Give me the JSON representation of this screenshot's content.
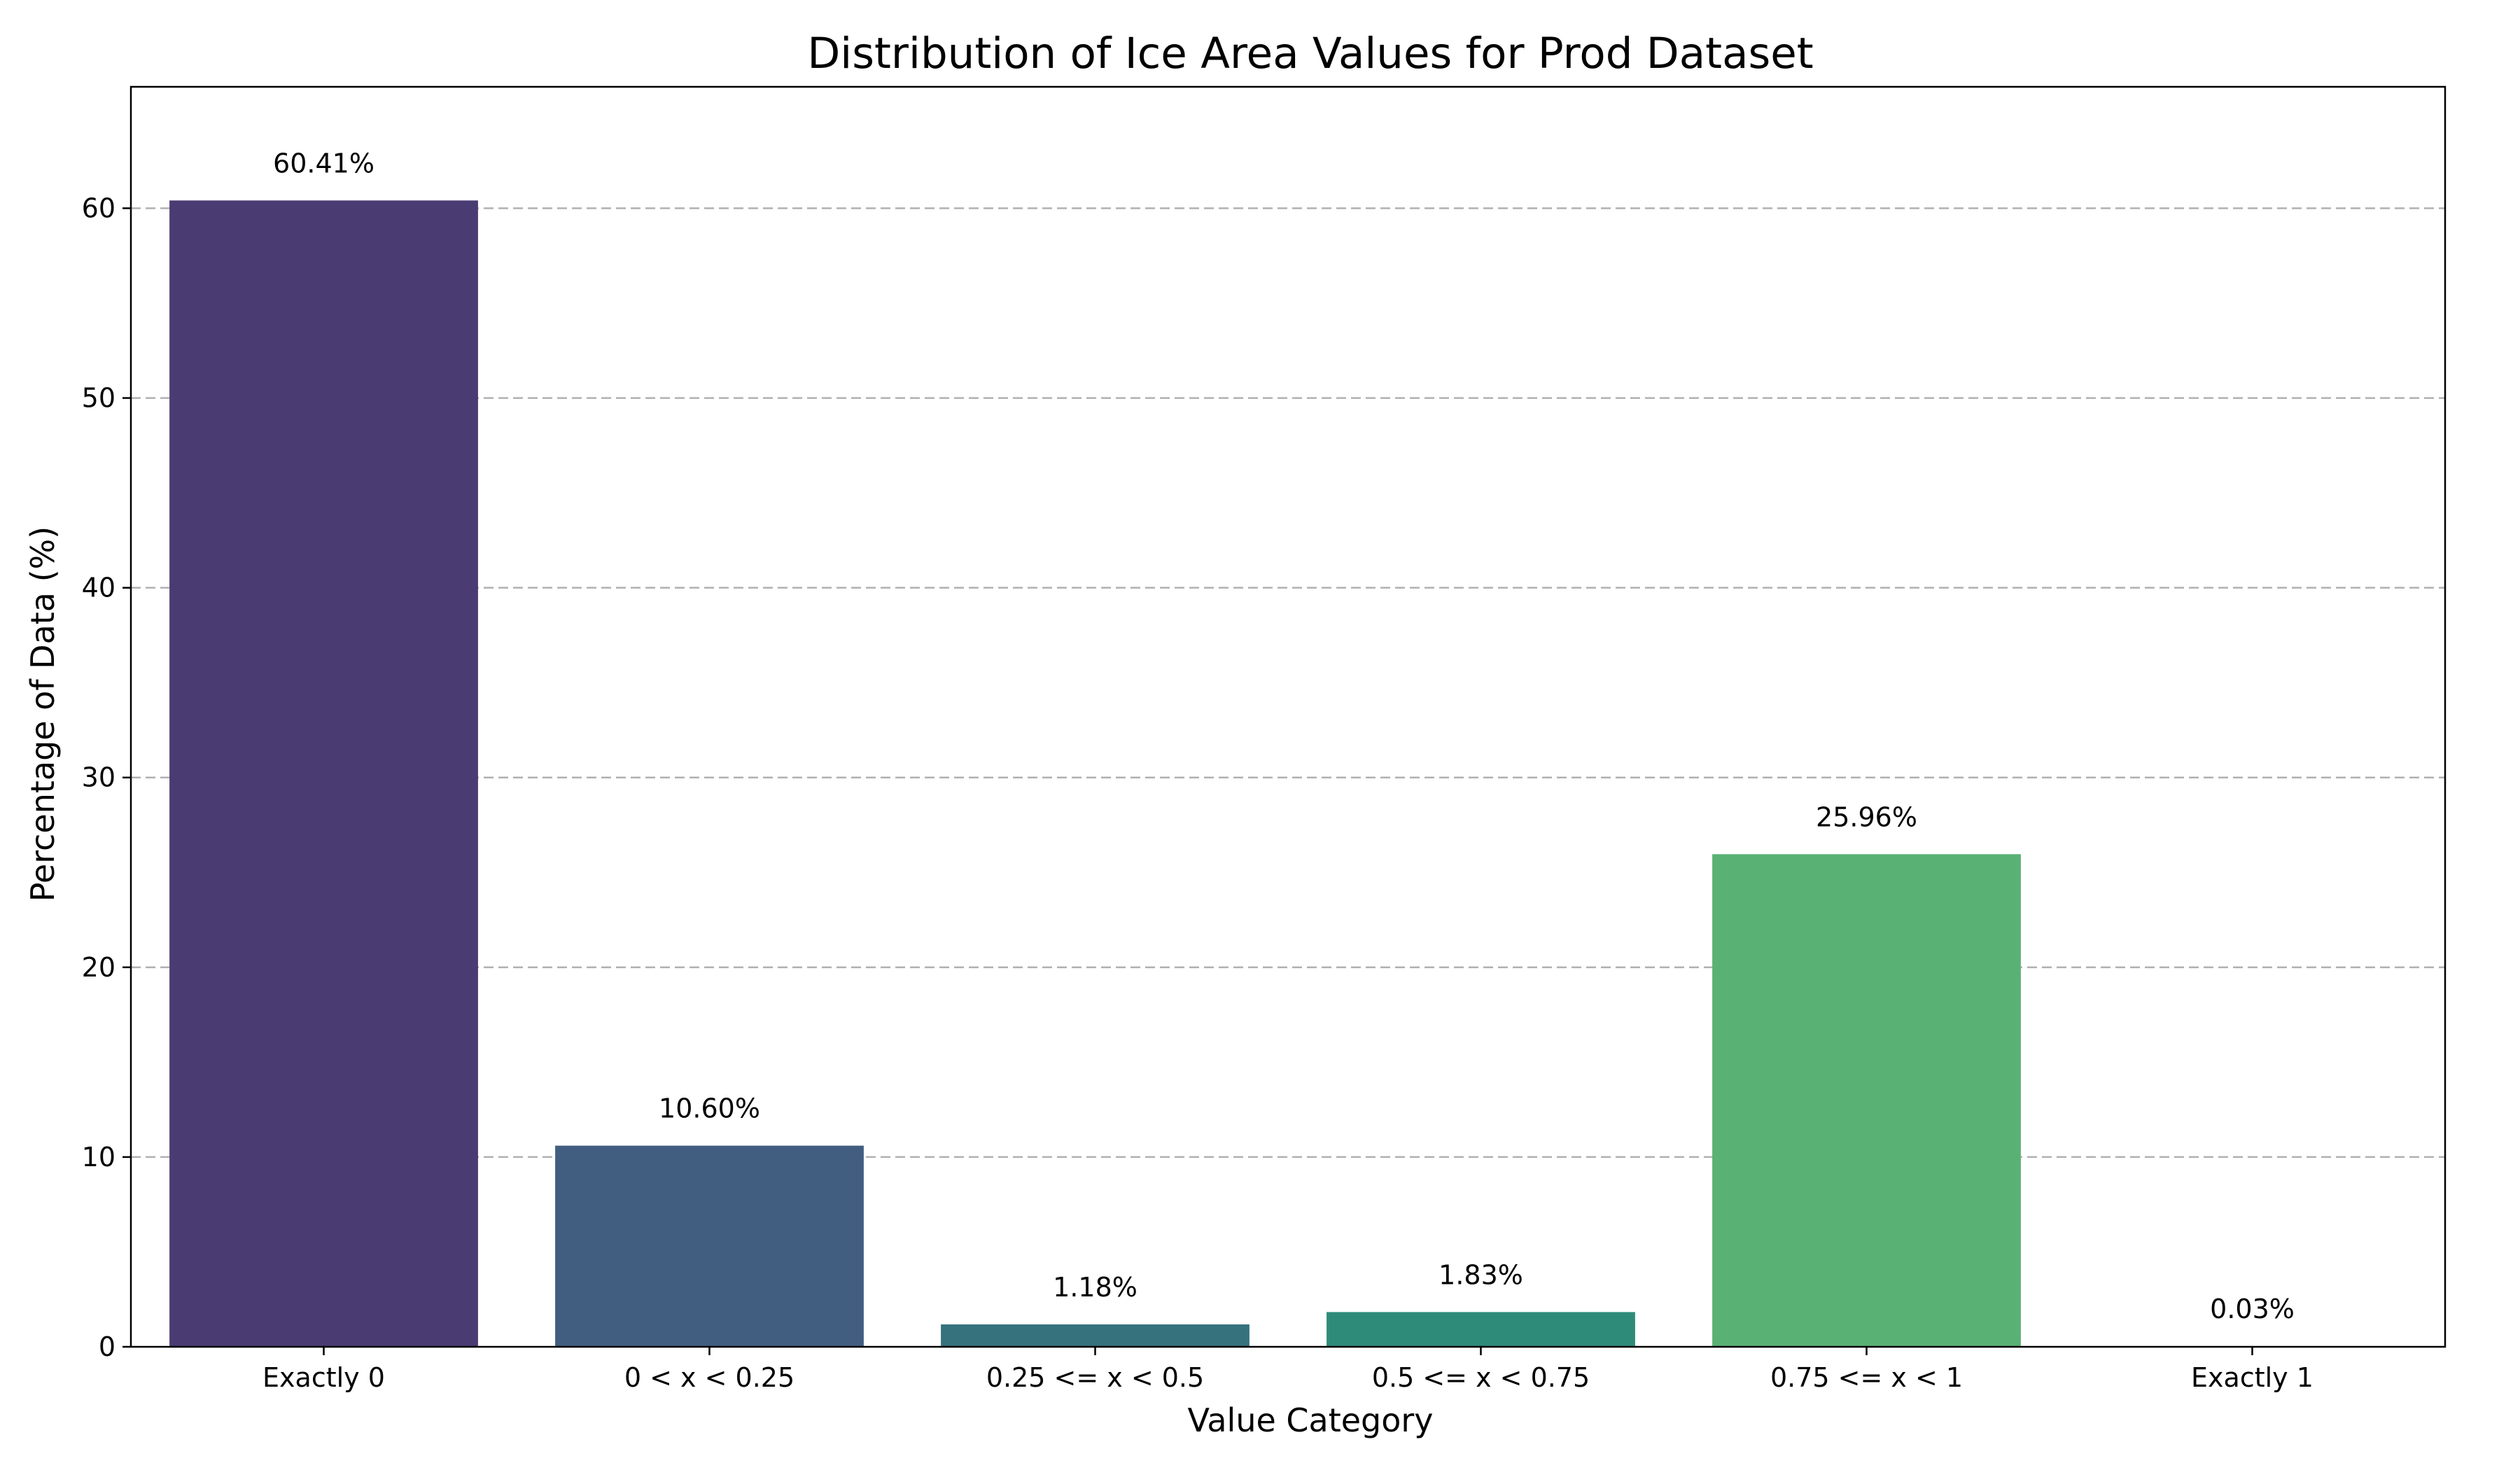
{
  "chart_data": {
    "type": "bar",
    "title": "Distribution of Ice Area Values for Prod Dataset",
    "xlabel": "Value Category",
    "ylabel": "Percentage of Data (%)",
    "categories": [
      "Exactly 0",
      "0 < x < 0.25",
      "0.25 <= x < 0.5",
      "0.5 <= x < 0.75",
      "0.75 <= x < 1",
      "Exactly 1"
    ],
    "values": [
      60.41,
      10.6,
      1.18,
      1.83,
      25.96,
      0.03
    ],
    "value_labels": [
      "60.41%",
      "10.60%",
      "1.18%",
      "1.83%",
      "25.96%",
      "0.03%"
    ],
    "colors": [
      "#4a3b73",
      "#415e80",
      "#35727e",
      "#2e8b7a",
      "#5ab174",
      "#8fd15d"
    ],
    "ylim": [
      0,
      66.4
    ],
    "yticks": [
      0,
      10,
      20,
      30,
      40,
      50,
      60
    ],
    "grid": "y-dashed",
    "legend": "none"
  }
}
